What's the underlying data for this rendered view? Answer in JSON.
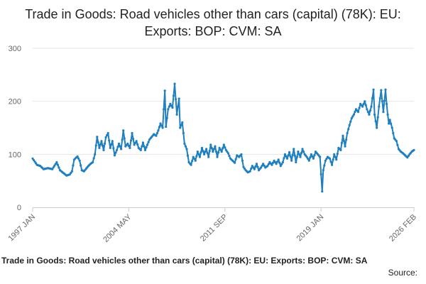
{
  "chart_data": {
    "type": "line",
    "title": "Trade in Goods: Road vehicles other than cars (capital) (78K): EU: Exports: BOP: CVM: SA",
    "footer_title": "Trade in Goods: Road vehicles other than cars (capital) (78K): EU: Exports: BOP: CVM: SA",
    "source_label": "Source:",
    "xlabel": "",
    "ylabel": "",
    "ylim": [
      0,
      300
    ],
    "y_ticks": [
      0,
      100,
      200,
      300
    ],
    "x_start": "1997 JAN",
    "x_end": "2026 FEB",
    "x_tick_labels": [
      "1997 JAN",
      "2004 MAY",
      "2011 SEP",
      "2019 JAN",
      "2026 FEB"
    ],
    "x_tick_month_index": [
      0,
      88,
      176,
      264,
      349
    ],
    "grid": true,
    "line_color": "#1f7fbf",
    "series": [
      {
        "name": "Exports",
        "anchors": [
          [
            0,
            92
          ],
          [
            4,
            80
          ],
          [
            7,
            78
          ],
          [
            10,
            72
          ],
          [
            14,
            74
          ],
          [
            18,
            72
          ],
          [
            22,
            85
          ],
          [
            25,
            70
          ],
          [
            28,
            65
          ],
          [
            31,
            60
          ],
          [
            34,
            62
          ],
          [
            36,
            68
          ],
          [
            38,
            90
          ],
          [
            41,
            96
          ],
          [
            43,
            88
          ],
          [
            45,
            70
          ],
          [
            47,
            68
          ],
          [
            49,
            73
          ],
          [
            51,
            78
          ],
          [
            53,
            82
          ],
          [
            55,
            85
          ],
          [
            57,
            100
          ],
          [
            59,
            133
          ],
          [
            61,
            112
          ],
          [
            63,
            125
          ],
          [
            65,
            108
          ],
          [
            67,
            132
          ],
          [
            69,
            140
          ],
          [
            71,
            112
          ],
          [
            73,
            125
          ],
          [
            75,
            98
          ],
          [
            77,
            108
          ],
          [
            79,
            120
          ],
          [
            81,
            110
          ],
          [
            83,
            145
          ],
          [
            85,
            115
          ],
          [
            87,
            120
          ],
          [
            89,
            112
          ],
          [
            91,
            140
          ],
          [
            93,
            118
          ],
          [
            95,
            125
          ],
          [
            97,
            112
          ],
          [
            99,
            108
          ],
          [
            101,
            122
          ],
          [
            103,
            108
          ],
          [
            105,
            118
          ],
          [
            107,
            128
          ],
          [
            109,
            133
          ],
          [
            111,
            138
          ],
          [
            113,
            135
          ],
          [
            115,
            145
          ],
          [
            117,
            158
          ],
          [
            119,
            150
          ],
          [
            121,
            220
          ],
          [
            122,
            152
          ],
          [
            124,
            185
          ],
          [
            126,
            195
          ],
          [
            128,
            188
          ],
          [
            130,
            233
          ],
          [
            132,
            175
          ],
          [
            134,
            205
          ],
          [
            135,
            150
          ],
          [
            137,
            160
          ],
          [
            139,
            120
          ],
          [
            141,
            110
          ],
          [
            143,
            85
          ],
          [
            145,
            80
          ],
          [
            147,
            95
          ],
          [
            149,
            88
          ],
          [
            151,
            105
          ],
          [
            153,
            95
          ],
          [
            155,
            112
          ],
          [
            157,
            100
          ],
          [
            159,
            110
          ],
          [
            161,
            95
          ],
          [
            163,
            118
          ],
          [
            165,
            105
          ],
          [
            167,
            115
          ],
          [
            169,
            95
          ],
          [
            171,
            112
          ],
          [
            173,
            105
          ],
          [
            175,
            118
          ],
          [
            177,
            108
          ],
          [
            179,
            102
          ],
          [
            181,
            92
          ],
          [
            183,
            88
          ],
          [
            185,
            84
          ],
          [
            187,
            98
          ],
          [
            189,
            95
          ],
          [
            191,
            100
          ],
          [
            193,
            76
          ],
          [
            195,
            70
          ],
          [
            197,
            66
          ],
          [
            199,
            68
          ],
          [
            201,
            78
          ],
          [
            203,
            72
          ],
          [
            205,
            82
          ],
          [
            207,
            70
          ],
          [
            209,
            75
          ],
          [
            211,
            82
          ],
          [
            213,
            75
          ],
          [
            215,
            78
          ],
          [
            217,
            85
          ],
          [
            219,
            80
          ],
          [
            221,
            88
          ],
          [
            223,
            82
          ],
          [
            225,
            90
          ],
          [
            227,
            78
          ],
          [
            229,
            85
          ],
          [
            231,
            100
          ],
          [
            233,
            92
          ],
          [
            235,
            104
          ],
          [
            237,
            88
          ],
          [
            239,
            110
          ],
          [
            241,
            85
          ],
          [
            243,
            105
          ],
          [
            245,
            95
          ],
          [
            247,
            110
          ],
          [
            249,
            100
          ],
          [
            251,
            95
          ],
          [
            253,
            88
          ],
          [
            255,
            100
          ],
          [
            257,
            92
          ],
          [
            259,
            105
          ],
          [
            261,
            100
          ],
          [
            263,
            95
          ],
          [
            265,
            30
          ],
          [
            266,
            70
          ],
          [
            268,
            88
          ],
          [
            270,
            95
          ],
          [
            272,
            92
          ],
          [
            274,
            80
          ],
          [
            276,
            100
          ],
          [
            278,
            90
          ],
          [
            280,
            112
          ],
          [
            282,
            108
          ],
          [
            284,
            135
          ],
          [
            286,
            115
          ],
          [
            288,
            140
          ],
          [
            290,
            155
          ],
          [
            292,
            168
          ],
          [
            294,
            175
          ],
          [
            296,
            185
          ],
          [
            298,
            180
          ],
          [
            300,
            195
          ],
          [
            302,
            190
          ],
          [
            304,
            200
          ],
          [
            306,
            185
          ],
          [
            308,
            175
          ],
          [
            310,
            190
          ],
          [
            312,
            222
          ],
          [
            313,
            175
          ],
          [
            315,
            150
          ],
          [
            317,
            190
          ],
          [
            319,
            221
          ],
          [
            320,
            200
          ],
          [
            321,
            180
          ],
          [
            323,
            222
          ],
          [
            324,
            195
          ],
          [
            325,
            175
          ],
          [
            326,
            158
          ],
          [
            327,
            165
          ],
          [
            329,
            150
          ],
          [
            331,
            130
          ],
          [
            333,
            125
          ],
          [
            335,
            110
          ],
          [
            337,
            105
          ],
          [
            339,
            102
          ],
          [
            341,
            98
          ],
          [
            343,
            94
          ],
          [
            345,
            100
          ],
          [
            347,
            105
          ],
          [
            349,
            108
          ]
        ]
      }
    ]
  }
}
